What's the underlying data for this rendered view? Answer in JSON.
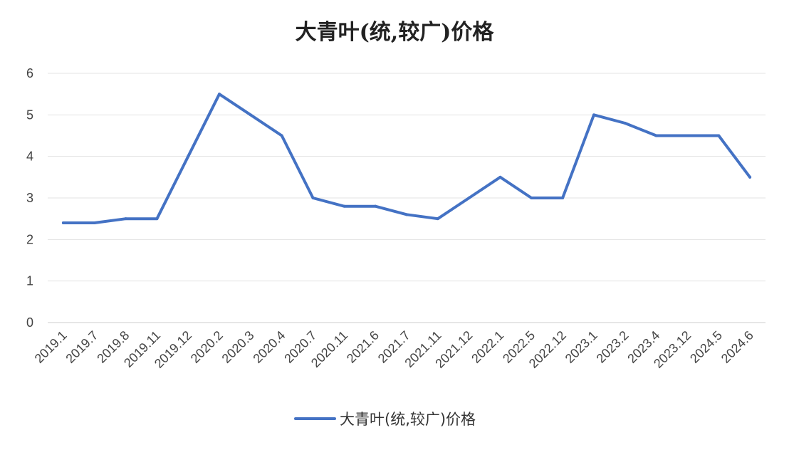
{
  "chart_data": {
    "type": "line",
    "title": "大青叶(统,较广)价格",
    "xlabel": "",
    "ylabel": "",
    "categories": [
      "2019.1",
      "2019.7",
      "2019.8",
      "2019.11",
      "2019.12",
      "2020.2",
      "2020.3",
      "2020.4",
      "2020.7",
      "2020.11",
      "2021.6",
      "2021.7",
      "2021.11",
      "2021.12",
      "2022.1",
      "2022.5",
      "2022.12",
      "2023.1",
      "2023.2",
      "2023.4",
      "2023.12",
      "2024.5",
      "2024.6"
    ],
    "series": [
      {
        "name": "大青叶(统,较广)价格",
        "color": "#4472c4",
        "values": [
          2.4,
          2.4,
          2.5,
          2.5,
          4.0,
          5.5,
          5.0,
          4.5,
          3.0,
          2.8,
          2.8,
          2.6,
          2.5,
          3.0,
          3.5,
          3.0,
          3.0,
          5.0,
          4.8,
          4.5,
          4.5,
          4.5,
          3.5
        ]
      }
    ],
    "ylim": [
      0,
      6
    ],
    "yticks": [
      "0",
      "1",
      "2",
      "3",
      "4",
      "5",
      "6"
    ],
    "grid": true,
    "legend": "bottom"
  }
}
